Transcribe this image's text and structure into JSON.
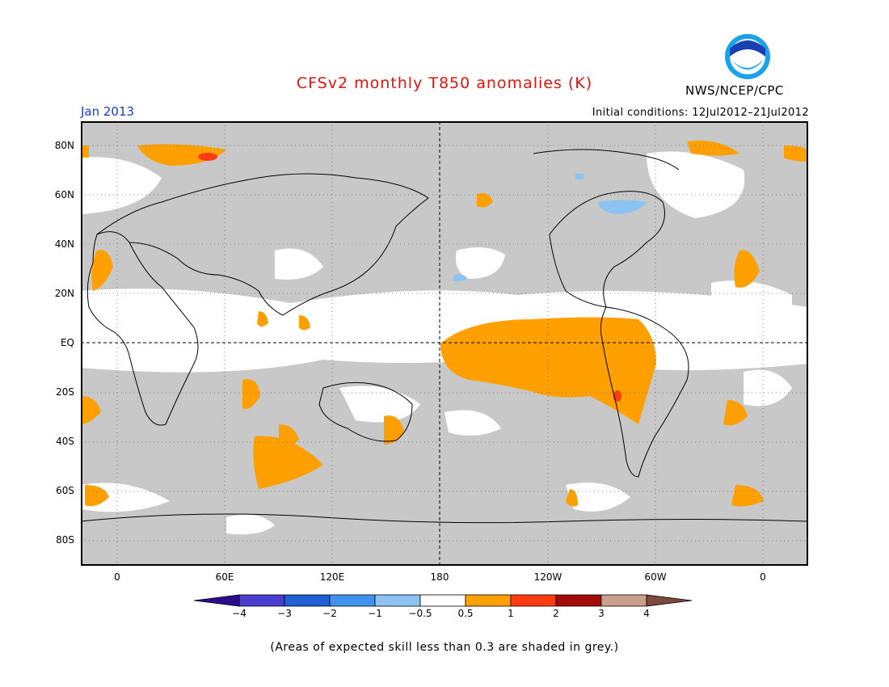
{
  "title": "CFSv2 monthly T850 anomalies (K)",
  "agency": "NWS/NCEP/CPC",
  "logo_text": "NOAA",
  "month_label": "Jan 2013",
  "init_label": "Initial conditions: 12Jul2012–21Jul2012",
  "lat_labels": [
    "80N",
    "60N",
    "40N",
    "20N",
    "EQ",
    "20S",
    "40S",
    "60S",
    "80S"
  ],
  "lon_labels": [
    "0",
    "60E",
    "120E",
    "180",
    "120W",
    "60W",
    "0"
  ],
  "colorbar": {
    "labels": [
      "−4",
      "−3",
      "−2",
      "−1",
      "−0.5",
      "0.5",
      "1",
      "2",
      "3",
      "4"
    ],
    "colors": [
      "#2a0d8e",
      "#4a3ed0",
      "#1f62d6",
      "#3f93ec",
      "#8cc3f2",
      "#ffffff",
      "#ffa000",
      "#ff3c0f",
      "#a50a0a",
      "#c8a08c",
      "#7b4a3c"
    ]
  },
  "footnote": "(Areas of expected skill less than 0.3 are shaded in grey.)"
}
